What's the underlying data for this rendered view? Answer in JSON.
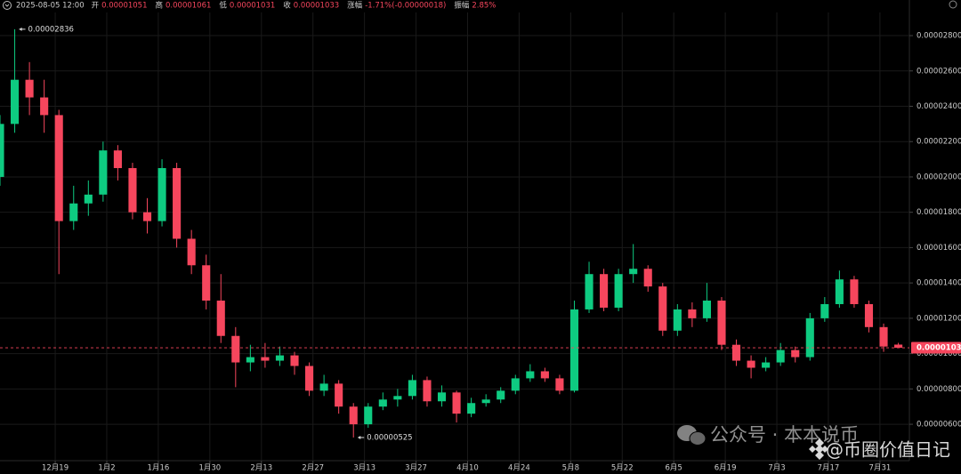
{
  "chart_data": {
    "type": "candlestick",
    "header": {
      "datetime": "2025-08-05 12:00",
      "items": [
        {
          "label": "开",
          "value": "0.00001051"
        },
        {
          "label": "高",
          "value": "0.00001061"
        },
        {
          "label": "低",
          "value": "0.00001031"
        },
        {
          "label": "收",
          "value": "0.00001033"
        },
        {
          "label": "涨幅",
          "value": "-1.71%(-0.00000018)"
        },
        {
          "label": "振幅",
          "value": "2.85%"
        }
      ]
    },
    "up_color": "#0ecb81",
    "down_color": "#f6465d",
    "grid": true,
    "xlim": [
      0,
      247
    ],
    "xticks": [
      {
        "value": 15,
        "label": "12月19"
      },
      {
        "value": 29,
        "label": "1月2"
      },
      {
        "value": 43,
        "label": "1月16"
      },
      {
        "value": 57,
        "label": "1月30"
      },
      {
        "value": 71,
        "label": "2月13"
      },
      {
        "value": 85,
        "label": "2月27"
      },
      {
        "value": 99,
        "label": "3月13"
      },
      {
        "value": 113,
        "label": "3月27"
      },
      {
        "value": 127,
        "label": "4月10"
      },
      {
        "value": 141,
        "label": "4月24"
      },
      {
        "value": 155,
        "label": "5月8"
      },
      {
        "value": 169,
        "label": "5月22"
      },
      {
        "value": 183,
        "label": "6月5"
      },
      {
        "value": 197,
        "label": "6月19"
      },
      {
        "value": 211,
        "label": "7月3"
      },
      {
        "value": 225,
        "label": "7月17"
      },
      {
        "value": 239,
        "label": "7月31"
      }
    ],
    "ylim": [
      3.94e-06,
      2.931e-05
    ],
    "yticks": [
      {
        "value": 6e-06,
        "label": "0.00000600"
      },
      {
        "value": 8e-06,
        "label": "0.00000800"
      },
      {
        "value": 1e-05,
        "label": "0.00001000"
      },
      {
        "value": 1.2e-05,
        "label": "0.00001200"
      },
      {
        "value": 1.4e-05,
        "label": "0.00001400"
      },
      {
        "value": 1.6e-05,
        "label": "0.00001600"
      },
      {
        "value": 1.8e-05,
        "label": "0.00001800"
      },
      {
        "value": 2e-05,
        "label": "0.00002000"
      },
      {
        "value": 2.2e-05,
        "label": "0.00002200"
      },
      {
        "value": 2.4e-05,
        "label": "0.00002400"
      },
      {
        "value": 2.6e-05,
        "label": "0.00002600"
      },
      {
        "value": 2.8e-05,
        "label": "0.00002800"
      }
    ],
    "x": [
      0,
      4,
      8,
      12,
      16,
      20,
      24,
      28,
      32,
      36,
      40,
      44,
      48,
      52,
      56,
      60,
      64,
      68,
      72,
      76,
      80,
      84,
      88,
      92,
      96,
      100,
      104,
      108,
      112,
      116,
      120,
      124,
      128,
      132,
      136,
      140,
      144,
      148,
      152,
      156,
      160,
      164,
      168,
      172,
      176,
      180,
      184,
      188,
      192,
      196,
      200,
      204,
      208,
      212,
      216,
      220,
      224,
      228,
      232,
      236,
      240,
      244
    ],
    "open": [
      2e-05,
      2.3e-05,
      2.55e-05,
      2.45e-05,
      2.35e-05,
      1.75e-05,
      1.85e-05,
      1.9e-05,
      2.15e-05,
      2.05e-05,
      1.8e-05,
      1.75e-05,
      2.05e-05,
      1.65e-05,
      1.5e-05,
      1.3e-05,
      1.1e-05,
      9.5e-06,
      9.8e-06,
      9.6e-06,
      9.9e-06,
      9.3e-06,
      7.9e-06,
      8.3e-06,
      7e-06,
      6e-06,
      7e-06,
      7.4e-06,
      7.6e-06,
      8.5e-06,
      7.3e-06,
      7.8e-06,
      6.6e-06,
      7.2e-06,
      7.4e-06,
      7.9e-06,
      8.6e-06,
      9e-06,
      8.6e-06,
      7.9e-06,
      1.25e-05,
      1.45e-05,
      1.26e-05,
      1.45e-05,
      1.48e-05,
      1.38e-05,
      1.13e-05,
      1.25e-05,
      1.2e-05,
      1.3e-05,
      1.05e-05,
      9.6e-06,
      9.2e-06,
      9.5e-06,
      1.02e-05,
      9.8e-06,
      1.2e-05,
      1.28e-05,
      1.42e-05,
      1.28e-05,
      1.15e-05,
      1.051e-05
    ],
    "high": [
      2.35e-05,
      2.836e-05,
      2.65e-05,
      2.55e-05,
      2.38e-05,
      1.95e-05,
      1.98e-05,
      2.2e-05,
      2.18e-05,
      2.08e-05,
      1.88e-05,
      2.1e-05,
      2.08e-05,
      1.7e-05,
      1.56e-05,
      1.45e-05,
      1.15e-05,
      1.05e-05,
      1.06e-05,
      1.04e-05,
      1.01e-05,
      9.5e-06,
      8.8e-06,
      8.5e-06,
      7.2e-06,
      7.2e-06,
      7.8e-06,
      8e-06,
      8.8e-06,
      8.7e-06,
      8.2e-06,
      7.9e-06,
      7.5e-06,
      7.7e-06,
      8.1e-06,
      8.8e-06,
      9.4e-06,
      9.2e-06,
      8.8e-06,
      1.3e-05,
      1.52e-05,
      1.48e-05,
      1.48e-05,
      1.62e-05,
      1.5e-05,
      1.4e-05,
      1.28e-05,
      1.29e-05,
      1.4e-05,
      1.32e-05,
      1.08e-05,
      9.9e-06,
      9.8e-06,
      1.06e-05,
      1.04e-05,
      1.23e-05,
      1.32e-05,
      1.47e-05,
      1.44e-05,
      1.3e-05,
      1.17e-05,
      1.061e-05
    ],
    "low": [
      1.95e-05,
      2.25e-05,
      2.35e-05,
      2.25e-05,
      1.45e-05,
      1.7e-05,
      1.78e-05,
      1.86e-05,
      1.98e-05,
      1.76e-05,
      1.68e-05,
      1.72e-05,
      1.6e-05,
      1.45e-05,
      1.25e-05,
      1.06e-05,
      8.1e-06,
      9e-06,
      9.2e-06,
      9.3e-06,
      8.8e-06,
      7.6e-06,
      7.6e-06,
      6.6e-06,
      5.25e-06,
      5.8e-06,
      6.8e-06,
      7e-06,
      7.4e-06,
      7e-06,
      7e-06,
      6.1e-06,
      6.4e-06,
      7e-06,
      7.2e-06,
      7.7e-06,
      8.4e-06,
      8.4e-06,
      7.7e-06,
      7.8e-06,
      1.23e-05,
      1.24e-05,
      1.24e-05,
      1.4e-05,
      1.35e-05,
      1.1e-05,
      1.1e-05,
      1.15e-05,
      1.18e-05,
      1.02e-05,
      9.3e-06,
      8.6e-06,
      9e-06,
      9.3e-06,
      9.5e-06,
      9.6e-06,
      1.18e-05,
      1.26e-05,
      1.26e-05,
      1.12e-05,
      1.01e-05,
      1.031e-05
    ],
    "close": [
      2.3e-05,
      2.55e-05,
      2.45e-05,
      2.35e-05,
      1.75e-05,
      1.85e-05,
      1.9e-05,
      2.15e-05,
      2.05e-05,
      1.8e-05,
      1.75e-05,
      2.05e-05,
      1.65e-05,
      1.5e-05,
      1.3e-05,
      1.1e-05,
      9.5e-06,
      9.8e-06,
      9.6e-06,
      9.9e-06,
      9.3e-06,
      7.9e-06,
      8.3e-06,
      7e-06,
      6e-06,
      7e-06,
      7.4e-06,
      7.6e-06,
      8.5e-06,
      7.3e-06,
      7.8e-06,
      6.6e-06,
      7.2e-06,
      7.4e-06,
      7.9e-06,
      8.6e-06,
      9e-06,
      8.6e-06,
      7.9e-06,
      1.25e-05,
      1.45e-05,
      1.26e-05,
      1.45e-05,
      1.48e-05,
      1.38e-05,
      1.13e-05,
      1.25e-05,
      1.2e-05,
      1.3e-05,
      1.05e-05,
      9.6e-06,
      9.2e-06,
      9.5e-06,
      1.02e-05,
      9.8e-06,
      1.2e-05,
      1.28e-05,
      1.42e-05,
      1.28e-05,
      1.15e-05,
      1.04e-05,
      1.033e-05
    ],
    "max_label": {
      "value": 2.836e-05,
      "label": "0.00002836",
      "x": 4
    },
    "min_label": {
      "value": 5.25e-06,
      "label": "0.00000525",
      "x": 96
    },
    "last_price": {
      "value": 1.033e-05,
      "label": "0.00001033"
    },
    "watermark": {
      "account": "公众号 · 本本说币",
      "handle": "@币圈价值日记"
    }
  }
}
